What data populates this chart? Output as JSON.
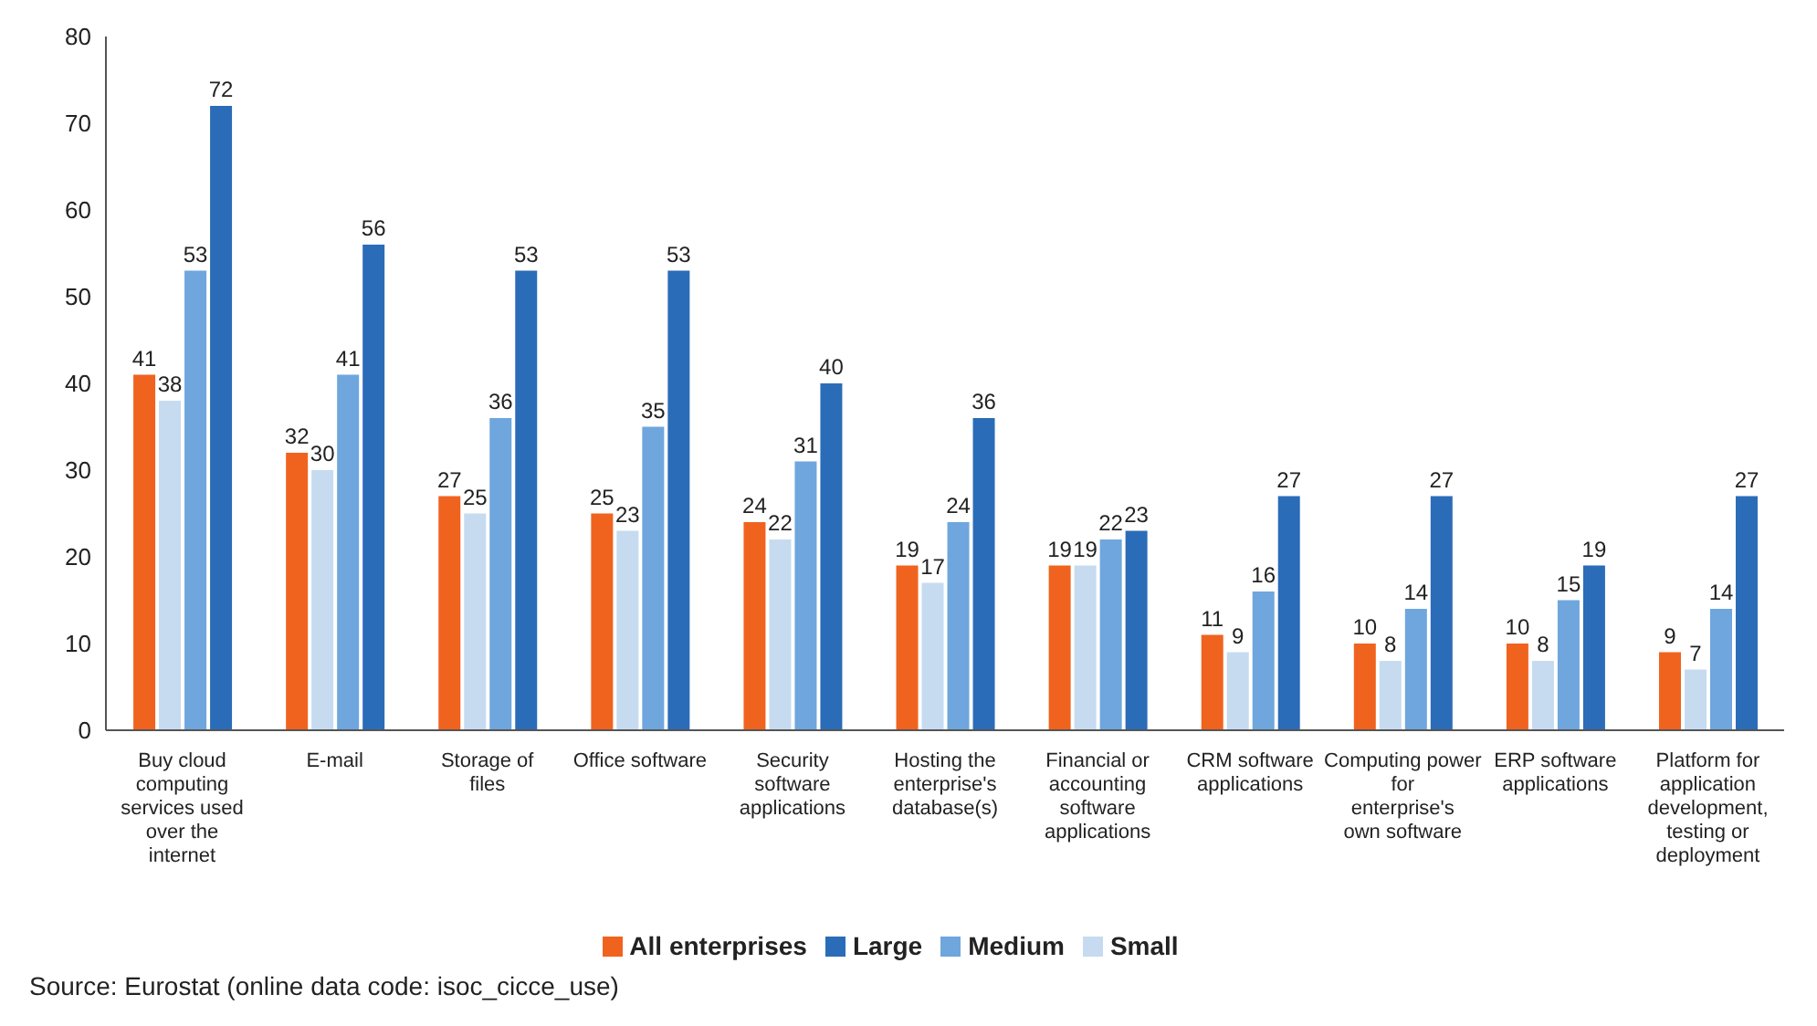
{
  "chart_data": {
    "type": "bar",
    "categories": [
      "Buy cloud computing services used over the internet",
      "E-mail",
      "Storage of files",
      "Office software",
      "Security software applications",
      "Hosting the enterprise's database(s)",
      "Financial or accounting software applications",
      "CRM software applications",
      "Computing power for enterprise's own software",
      "ERP software applications",
      "Platform for application development, testing or deployment"
    ],
    "series": [
      {
        "name": "All enterprises",
        "color": "#f0631e",
        "values": [
          41,
          32,
          27,
          25,
          24,
          19,
          19,
          11,
          10,
          10,
          9
        ]
      },
      {
        "name": "Small",
        "color": "#c6dbf0",
        "values": [
          38,
          30,
          25,
          23,
          22,
          17,
          19,
          9,
          8,
          8,
          7
        ]
      },
      {
        "name": "Medium",
        "color": "#6ea6dd",
        "values": [
          53,
          41,
          36,
          35,
          31,
          24,
          22,
          16,
          14,
          15,
          14
        ]
      },
      {
        "name": "Large",
        "color": "#2b6cb8",
        "values": [
          72,
          56,
          53,
          53,
          40,
          36,
          23,
          27,
          27,
          19,
          27
        ]
      }
    ],
    "ylim": [
      0,
      80
    ],
    "yticks": [
      0,
      10,
      20,
      30,
      40,
      50,
      60,
      70,
      80
    ],
    "grid": false,
    "legend": "bottom",
    "data_labels": true,
    "annotations": [
      "Source: Eurostat (online data code: isoc_cicce_use)"
    ]
  }
}
